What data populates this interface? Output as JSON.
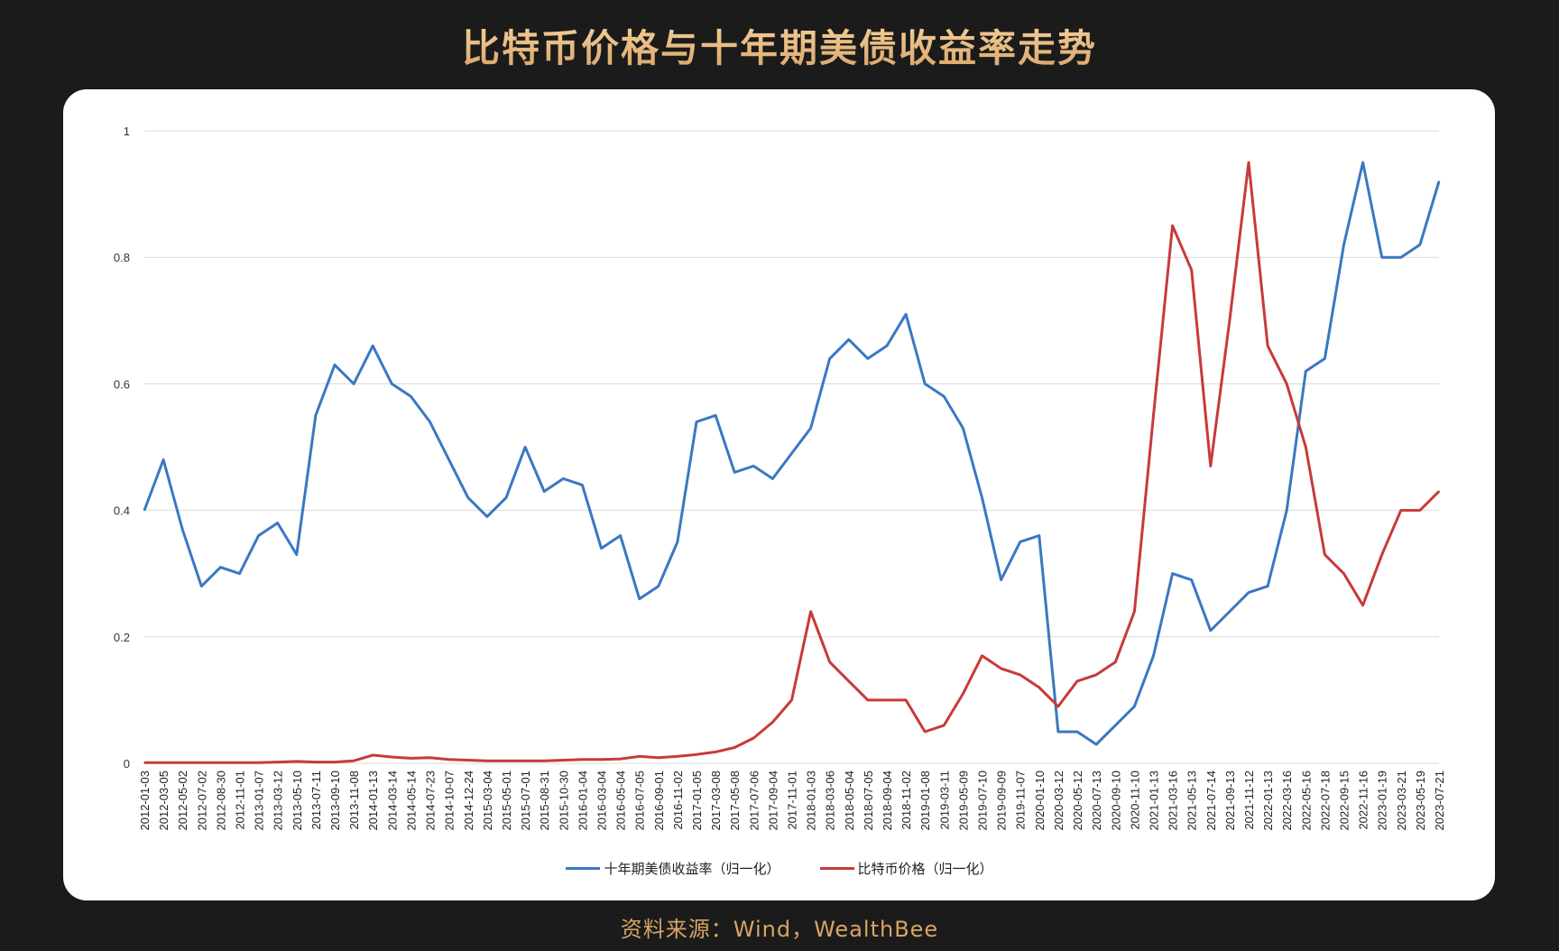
{
  "title": "比特币价格与十年期美债收益率走势",
  "source": "资料来源：Wind，WealthBee",
  "chart_data": {
    "type": "line",
    "title": "比特币价格与十年期美债收益率走势",
    "xlabel": "",
    "ylabel": "",
    "ylim": [
      0,
      1
    ],
    "yticks": [
      "0",
      "0.2",
      "0.4",
      "0.6",
      "0.8",
      "1"
    ],
    "grid": true,
    "legend_position": "bottom",
    "categories": [
      "2012-01-03",
      "2012-03-05",
      "2012-05-02",
      "2012-07-02",
      "2012-08-30",
      "2012-11-01",
      "2013-01-07",
      "2013-03-12",
      "2013-05-10",
      "2013-07-11",
      "2013-09-10",
      "2013-11-08",
      "2014-01-13",
      "2014-03-14",
      "2014-05-14",
      "2014-07-23",
      "2014-10-07",
      "2014-12-24",
      "2015-03-04",
      "2015-05-01",
      "2015-07-01",
      "2015-08-31",
      "2015-10-30",
      "2016-01-04",
      "2016-03-04",
      "2016-05-04",
      "2016-07-05",
      "2016-09-01",
      "2016-11-02",
      "2017-01-05",
      "2017-03-08",
      "2017-05-08",
      "2017-07-06",
      "2017-09-04",
      "2017-11-01",
      "2018-01-03",
      "2018-03-06",
      "2018-05-04",
      "2018-07-05",
      "2018-09-04",
      "2018-11-02",
      "2019-01-08",
      "2019-03-11",
      "2019-05-09",
      "2019-07-10",
      "2019-09-09",
      "2019-11-07",
      "2020-01-10",
      "2020-03-12",
      "2020-05-12",
      "2020-07-13",
      "2020-09-10",
      "2020-11-10",
      "2021-01-13",
      "2021-03-16",
      "2021-05-13",
      "2021-07-14",
      "2021-09-13",
      "2021-11-12",
      "2022-01-13",
      "2022-03-16",
      "2022-05-16",
      "2022-07-18",
      "2022-09-15",
      "2022-11-16",
      "2023-01-19",
      "2023-03-21",
      "2023-05-19",
      "2023-07-21"
    ],
    "series": [
      {
        "name": "十年期美债收益率（归一化）",
        "color": "#3a78c2",
        "values": [
          0.4,
          0.48,
          0.37,
          0.28,
          0.31,
          0.3,
          0.36,
          0.38,
          0.33,
          0.55,
          0.63,
          0.6,
          0.66,
          0.6,
          0.58,
          0.54,
          0.48,
          0.42,
          0.39,
          0.42,
          0.5,
          0.43,
          0.45,
          0.44,
          0.34,
          0.36,
          0.26,
          0.28,
          0.35,
          0.54,
          0.55,
          0.46,
          0.47,
          0.45,
          0.49,
          0.53,
          0.64,
          0.67,
          0.64,
          0.66,
          0.71,
          0.6,
          0.58,
          0.53,
          0.42,
          0.29,
          0.35,
          0.36,
          0.05,
          0.05,
          0.03,
          0.06,
          0.09,
          0.17,
          0.3,
          0.29,
          0.21,
          0.24,
          0.27,
          0.28,
          0.4,
          0.62,
          0.64,
          0.82,
          0.95,
          0.8,
          0.8,
          0.82,
          0.92
        ]
      },
      {
        "name": "比特币价格（归一化）",
        "color": "#c83a3a",
        "values": [
          0.001,
          0.001,
          0.001,
          0.001,
          0.001,
          0.001,
          0.001,
          0.002,
          0.003,
          0.002,
          0.002,
          0.004,
          0.013,
          0.01,
          0.008,
          0.009,
          0.006,
          0.005,
          0.004,
          0.004,
          0.004,
          0.004,
          0.005,
          0.006,
          0.006,
          0.007,
          0.011,
          0.009,
          0.011,
          0.014,
          0.018,
          0.025,
          0.04,
          0.065,
          0.1,
          0.24,
          0.16,
          0.13,
          0.1,
          0.1,
          0.1,
          0.05,
          0.06,
          0.11,
          0.17,
          0.15,
          0.14,
          0.12,
          0.09,
          0.13,
          0.14,
          0.16,
          0.24,
          0.55,
          0.85,
          0.78,
          0.47,
          0.7,
          0.95,
          0.66,
          0.6,
          0.5,
          0.33,
          0.3,
          0.25,
          0.33,
          0.4,
          0.4,
          0.43
        ]
      }
    ]
  }
}
